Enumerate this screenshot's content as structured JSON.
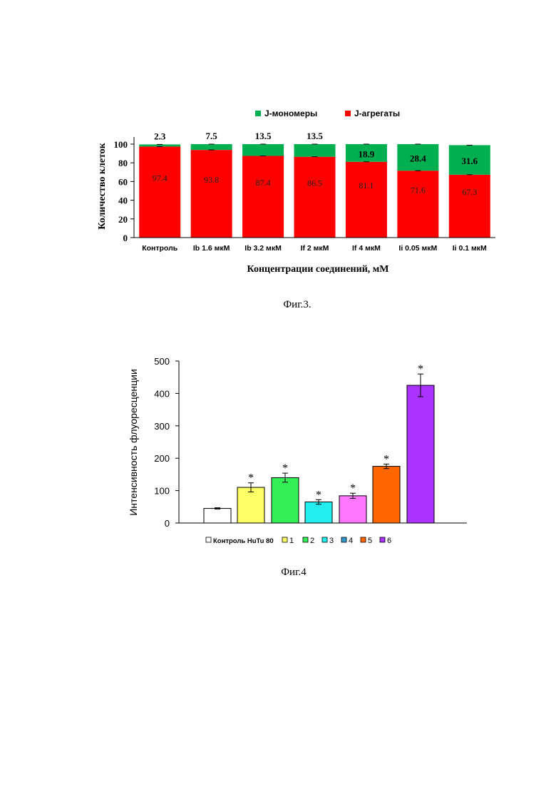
{
  "figures": [
    {
      "caption": "Фиг.3.",
      "chart_data": {
        "type": "bar",
        "stacked": true,
        "xlabel": "Концентрации соединений, мМ",
        "ylabel": "Количество клеток",
        "ylim": [
          0,
          100
        ],
        "yticks": [
          0,
          20,
          40,
          60,
          80,
          100
        ],
        "categories": [
          "Контроль",
          "Ib 1.6 мкМ",
          "Ib 3.2 мкМ",
          "If 2 мкМ",
          "If 4 мкМ",
          "Ii 0.05 мкМ",
          "Ii 0.1 мкМ"
        ],
        "series": [
          {
            "name": "J-агрегаты",
            "color": "#ff0000",
            "values": [
              97.4,
              93.8,
              87.4,
              86.5,
              81.1,
              71.6,
              67.3
            ]
          },
          {
            "name": "J-мономеры",
            "color": "#00b050",
            "values": [
              2.3,
              7.5,
              13.5,
              13.5,
              18.9,
              28.4,
              31.6
            ]
          }
        ],
        "legend": "top"
      }
    },
    {
      "caption": "Фиг.4",
      "chart_data": {
        "type": "bar",
        "ylabel": "Интенсивность флуоресценции",
        "ylim": [
          0,
          500
        ],
        "yticks": [
          0,
          100,
          200,
          300,
          400,
          500
        ],
        "categories": [
          "Контроль HuTu 80",
          "1",
          "2",
          "3",
          "4",
          "5",
          "6"
        ],
        "values": [
          45,
          110,
          140,
          65,
          84,
          175,
          425
        ],
        "errors": [
          2,
          14,
          14,
          7,
          8,
          7,
          35
        ],
        "significant": [
          false,
          true,
          true,
          true,
          true,
          true,
          true
        ],
        "significance_marker": "*",
        "colors": [
          "#ffffff",
          "#ffff66",
          "#33ee55",
          "#22eeee",
          "#ff77ff",
          "#ff6600",
          "#aa33ff"
        ],
        "legend_colors": [
          "#ffffff",
          "#ffff66",
          "#33ee55",
          "#22eeee",
          "#3399cc",
          "#ff6600",
          "#aa33ff"
        ],
        "legend": "bottom"
      }
    }
  ]
}
